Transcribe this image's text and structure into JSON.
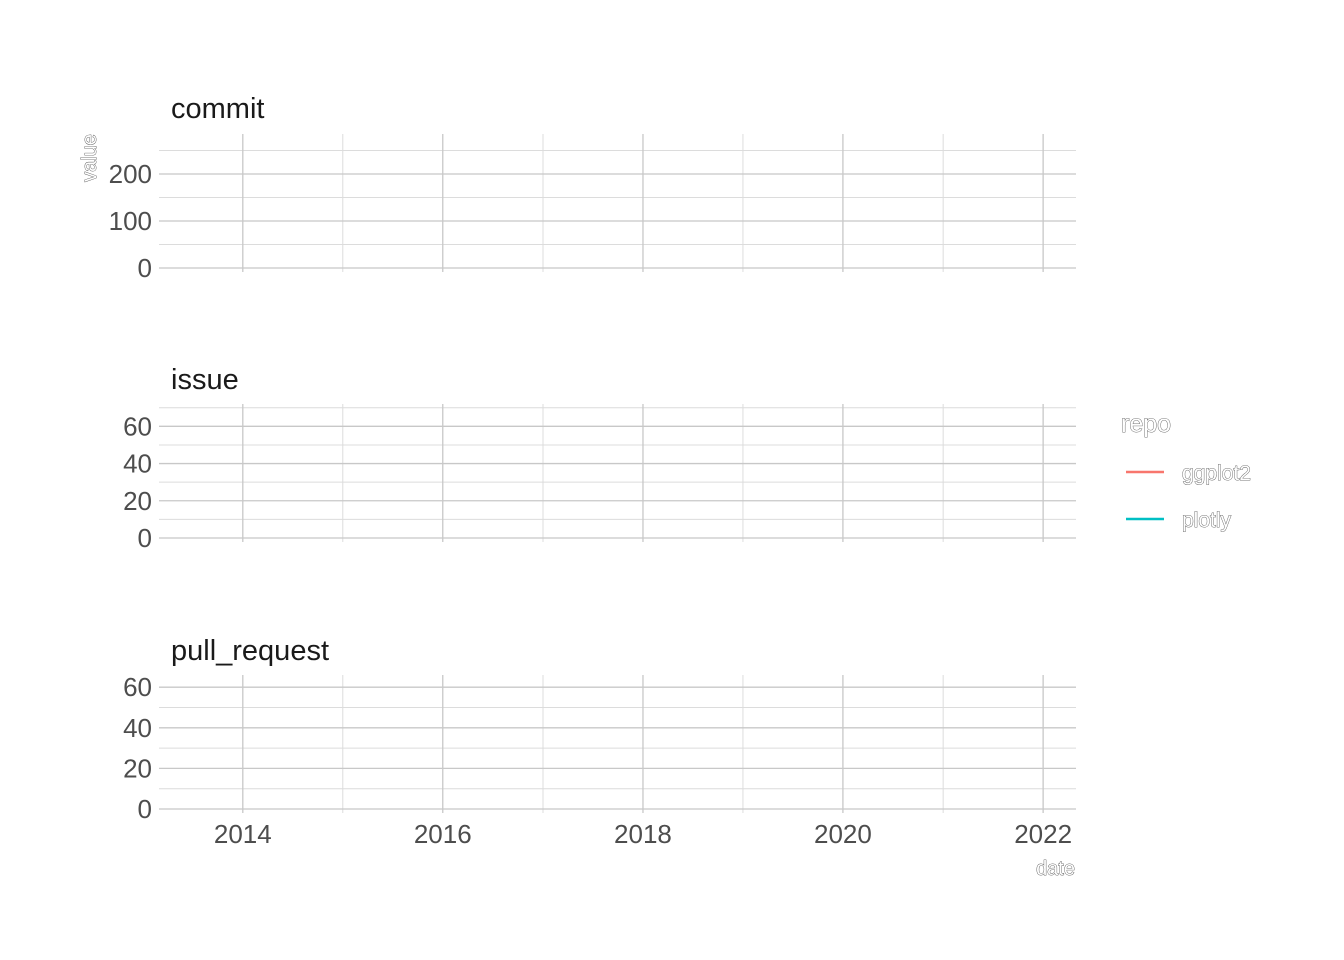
{
  "chart_data": {
    "type": "line",
    "facet_layout": "vertical",
    "x": [],
    "xlabel": "date",
    "ylabel": "value",
    "xlim": [
      "2013-03-01",
      "2022-05-01"
    ],
    "x_ticks": [
      "2014",
      "2016",
      "2018",
      "2020",
      "2022"
    ],
    "grid": true,
    "legend": {
      "title": "repo",
      "position": "right",
      "entries": [
        {
          "name": "ggplot2",
          "color": "#F8766D"
        },
        {
          "name": "plotly",
          "color": "#00BFC4"
        }
      ]
    },
    "panels": [
      {
        "title": "commit",
        "ylim": [
          0,
          285
        ],
        "y_ticks": [
          0,
          100,
          200
        ],
        "series": [
          {
            "name": "ggplot2",
            "values": []
          },
          {
            "name": "plotly",
            "values": []
          }
        ]
      },
      {
        "title": "issue",
        "ylim": [
          0,
          72
        ],
        "y_ticks": [
          0,
          20,
          40,
          60
        ],
        "series": [
          {
            "name": "ggplot2",
            "values": []
          },
          {
            "name": "plotly",
            "values": []
          }
        ]
      },
      {
        "title": "pull_request",
        "ylim": [
          0,
          66
        ],
        "y_ticks": [
          0,
          20,
          40,
          60
        ],
        "series": [
          {
            "name": "ggplot2",
            "values": []
          },
          {
            "name": "plotly",
            "values": []
          }
        ]
      }
    ]
  }
}
